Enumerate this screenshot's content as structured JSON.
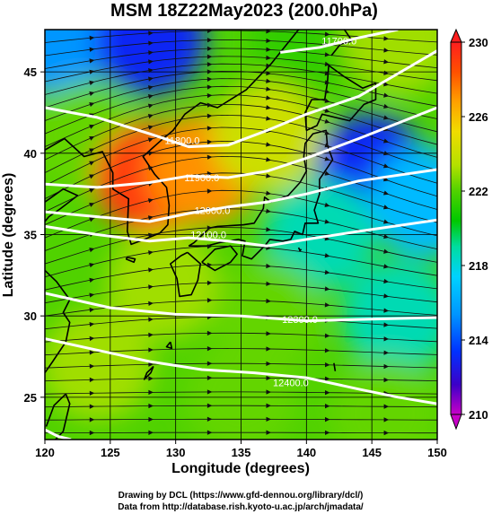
{
  "chart_data": {
    "type": "heatmap",
    "title": "MSM 18Z22May2023 (200.0hPa)",
    "xlabel": "Longitude (degrees)",
    "ylabel": "Latitude  (degrees)",
    "xlim": [
      120,
      150
    ],
    "ylim": [
      22.4,
      47.6
    ],
    "x_ticks": [
      "120",
      "125",
      "130",
      "135",
      "140",
      "145",
      "150"
    ],
    "y_ticks": [
      "25",
      "30",
      "35",
      "40",
      "45"
    ],
    "colorbar": {
      "min": 210,
      "max": 230,
      "tick_labels": [
        "230",
        "226",
        "222",
        "218",
        "214",
        "210"
      ],
      "colors": [
        "#c800c8",
        "#3c00c8",
        "#0032ff",
        "#0096ff",
        "#00d2ff",
        "#00dca0",
        "#00c800",
        "#50d200",
        "#b4e100",
        "#f0dc00",
        "#ffa000",
        "#ff5000",
        "#ff1e1e"
      ]
    },
    "temperature_field": [
      {
        "lon": 121,
        "lat": 47,
        "value": 215
      },
      {
        "lon": 128,
        "lat": 47,
        "value": 213
      },
      {
        "lon": 140,
        "lat": 47,
        "value": 221
      },
      {
        "lon": 147,
        "lat": 47,
        "value": 223
      },
      {
        "lon": 123,
        "lat": 41,
        "value": 222
      },
      {
        "lon": 128,
        "lat": 38.5,
        "value": 229
      },
      {
        "lon": 132,
        "lat": 39,
        "value": 227
      },
      {
        "lon": 137,
        "lat": 41,
        "value": 224
      },
      {
        "lon": 145,
        "lat": 39,
        "value": 213
      },
      {
        "lon": 149,
        "lat": 37,
        "value": 216
      },
      {
        "lon": 141,
        "lat": 35,
        "value": 218
      },
      {
        "lon": 129,
        "lat": 32,
        "value": 223
      },
      {
        "lon": 137,
        "lat": 30,
        "value": 222
      },
      {
        "lon": 147,
        "lat": 30,
        "value": 218
      },
      {
        "lon": 124,
        "lat": 27,
        "value": 223
      },
      {
        "lon": 135,
        "lat": 25,
        "value": 222
      },
      {
        "lon": 146,
        "lat": 24,
        "value": 222
      }
    ],
    "height_contours": [
      {
        "label": "11700.0",
        "points": [
          [
            138,
            46.2
          ],
          [
            141,
            46.5
          ],
          [
            144,
            47.1
          ],
          [
            147,
            47.6
          ]
        ],
        "label_at": [
          142.5,
          46.9
        ]
      },
      {
        "label": "11800.0",
        "points": [
          [
            120,
            42.8
          ],
          [
            124,
            42.2
          ],
          [
            128,
            41.2
          ],
          [
            131,
            40.4
          ],
          [
            134,
            40.5
          ],
          [
            137,
            41.4
          ],
          [
            140,
            42.4
          ],
          [
            144,
            43.5
          ],
          [
            147,
            44.9
          ],
          [
            150,
            46.3
          ]
        ],
        "label_at": [
          130.5,
          40.8
        ]
      },
      {
        "label": "11900.0",
        "points": [
          [
            120,
            38.1
          ],
          [
            124,
            37.9
          ],
          [
            128,
            38.2
          ],
          [
            131,
            38.6
          ],
          [
            134,
            38.5
          ],
          [
            137,
            38.9
          ],
          [
            140,
            39.7
          ],
          [
            144,
            40.9
          ],
          [
            150,
            42.8
          ]
        ],
        "label_at": [
          132,
          38.5
        ]
      },
      {
        "label": "12000.0",
        "points": [
          [
            120,
            36.4
          ],
          [
            124,
            36.1
          ],
          [
            128,
            35.8
          ],
          [
            131,
            36.3
          ],
          [
            134,
            36.7
          ],
          [
            137,
            37.0
          ],
          [
            140,
            37.5
          ],
          [
            144,
            38.3
          ],
          [
            150,
            39.0
          ]
        ],
        "label_at": [
          132.8,
          36.5
        ]
      },
      {
        "label": "12100.0",
        "points": [
          [
            120,
            35.5
          ],
          [
            124,
            35.0
          ],
          [
            128,
            34.6
          ],
          [
            131,
            34.8
          ],
          [
            134,
            34.6
          ],
          [
            137,
            34.3
          ],
          [
            140,
            34.7
          ],
          [
            144,
            35.2
          ],
          [
            150,
            35.9
          ]
        ],
        "label_at": [
          132.5,
          35.0
        ]
      },
      {
        "label": "12300.0",
        "points": [
          [
            120,
            31.4
          ],
          [
            125,
            30.5
          ],
          [
            130,
            30.1
          ],
          [
            135,
            30.0
          ],
          [
            140,
            29.7
          ],
          [
            145,
            29.8
          ],
          [
            150,
            29.9
          ]
        ],
        "label_at": [
          139.5,
          29.8
        ]
      },
      {
        "label": "12400.0",
        "points": [
          [
            120,
            28.6
          ],
          [
            124,
            27.9
          ],
          [
            128,
            27.2
          ],
          [
            132,
            26.7
          ],
          [
            136,
            26.5
          ],
          [
            140,
            26.2
          ],
          [
            144,
            25.5
          ],
          [
            147,
            25.0
          ],
          [
            150,
            24.6
          ]
        ],
        "label_at": [
          138.8,
          25.9
        ]
      },
      {
        "label": "",
        "points": [
          [
            120,
            23.0
          ],
          [
            121,
            22.6
          ],
          [
            122,
            22.4
          ]
        ],
        "label_at": null
      }
    ]
  },
  "credits": {
    "drawing": "Drawing by DCL (https://www.gfd-dennou.org/library/dcl/)",
    "data": "Data from http://database.rish.kyoto-u.ac.jp/arch/jmadata/"
  }
}
